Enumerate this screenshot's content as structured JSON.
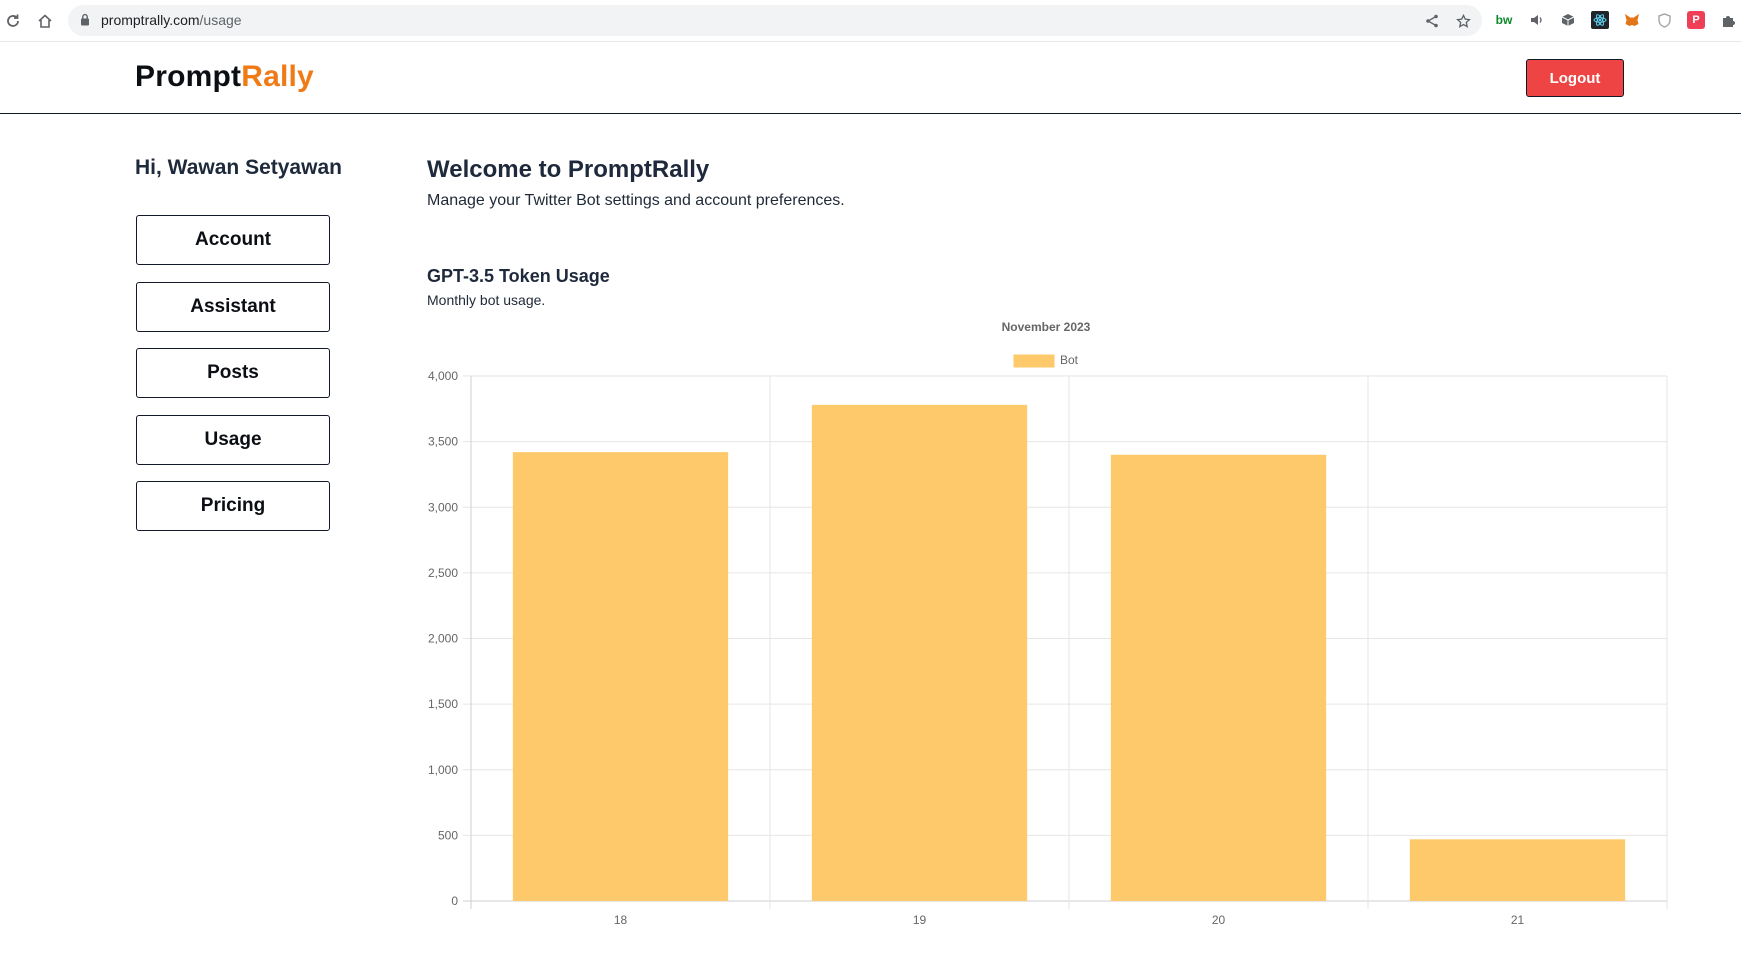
{
  "browser": {
    "url_domain": "promptrally.com",
    "url_path": "/usage",
    "extensions": [
      "bitwarden-icon",
      "speaker-icon",
      "cube-icon",
      "react-icon",
      "metamask-icon",
      "shield-icon",
      "pocket-icon",
      "puzzle-icon"
    ]
  },
  "header": {
    "logo_part1": "Prompt",
    "logo_part2": "Rally",
    "logout_label": "Logout",
    "accent_color": "#f07a16",
    "logout_color": "#ef4444"
  },
  "sidebar": {
    "greeting": "Hi, Wawan Setyawan",
    "items": [
      {
        "label": "Account"
      },
      {
        "label": "Assistant"
      },
      {
        "label": "Posts"
      },
      {
        "label": "Usage"
      },
      {
        "label": "Pricing"
      }
    ]
  },
  "main": {
    "title": "Welcome to PromptRally",
    "subtitle": "Manage your Twitter Bot settings and account preferences.",
    "section_title": "GPT-3.5 Token Usage",
    "section_subtitle": "Monthly bot usage."
  },
  "chart_data": {
    "type": "bar",
    "title": "November 2023",
    "categories": [
      "18",
      "19",
      "20",
      "21"
    ],
    "series": [
      {
        "name": "Bot",
        "values": [
          3420,
          3780,
          3400,
          470
        ],
        "color": "#fdc96b"
      }
    ],
    "ylim": [
      0,
      4000
    ],
    "yticks": [
      "0",
      "500",
      "1,000",
      "1,500",
      "2,000",
      "2,500",
      "3,000",
      "3,500",
      "4,000"
    ],
    "ytick_values": [
      0,
      500,
      1000,
      1500,
      2000,
      2500,
      3000,
      3500,
      4000
    ],
    "grid": true,
    "legend": "top-center"
  }
}
